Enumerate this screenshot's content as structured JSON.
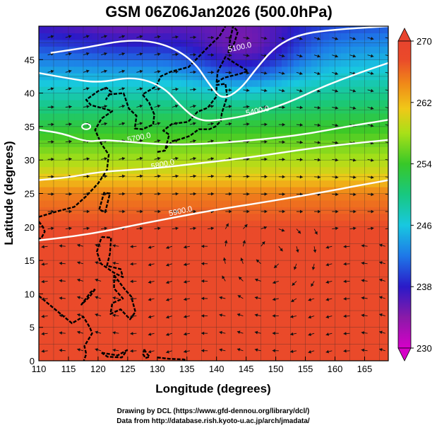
{
  "figure": {
    "title": "GSM 06Z06Jan2026 (500.0hPa)",
    "xlabel": "Longitude (degrees)",
    "ylabel": "Latitude  (degrees)",
    "credit_line1": "Drawing by DCL (https://www.gfd-dennou.org/library/dcl/)",
    "credit_line2": "Data from http://database.rish.kyoto-u.ac.jp/arch/jmadata/"
  },
  "chart_data": {
    "type": "heatmap",
    "x_range": [
      110,
      169
    ],
    "y_range": [
      0,
      50
    ],
    "x_ticks": [
      110,
      115,
      120,
      125,
      130,
      135,
      140,
      145,
      150,
      155,
      160,
      165
    ],
    "y_ticks": [
      0,
      5,
      10,
      15,
      20,
      25,
      30,
      35,
      40,
      45
    ],
    "colorbar": {
      "range": [
        230,
        270
      ],
      "tick_values": [
        230,
        238,
        246,
        254,
        262,
        270
      ],
      "tick_labels": [
        "230",
        "238",
        "246",
        "254",
        "262",
        "270"
      ]
    },
    "height_contours": [
      {
        "value": 5100,
        "label": "5100.0",
        "label_at": [
          144,
          46.5
        ],
        "path": [
          [
            112,
            46
          ],
          [
            118,
            46.8
          ],
          [
            125,
            48
          ],
          [
            131,
            47.5
          ],
          [
            136,
            45
          ],
          [
            139,
            41
          ],
          [
            141,
            39
          ],
          [
            144,
            40.5
          ],
          [
            147,
            44
          ],
          [
            150,
            47
          ],
          [
            154,
            48.8
          ],
          [
            160,
            49.5
          ],
          [
            169,
            50
          ]
        ]
      },
      {
        "value": 5400,
        "label": "5400.0",
        "label_at": [
          147,
          37
        ],
        "path": [
          [
            110,
            43
          ],
          [
            115,
            42.2
          ],
          [
            120,
            41.5
          ],
          [
            126,
            42.5
          ],
          [
            131,
            41
          ],
          [
            134,
            38
          ],
          [
            137,
            35.8
          ],
          [
            141,
            36
          ],
          [
            146,
            36.8
          ],
          [
            152,
            38.5
          ],
          [
            158,
            41
          ],
          [
            164,
            43
          ],
          [
            169,
            44.5
          ]
        ]
      },
      {
        "value": 5700,
        "label": "5700.0",
        "label_at": [
          127,
          33
        ],
        "path": [
          [
            110,
            34.5
          ],
          [
            114,
            34
          ],
          [
            118,
            32.7
          ],
          [
            121,
            33
          ],
          [
            124,
            32.8
          ],
          [
            128,
            32.5
          ],
          [
            132,
            32.3
          ],
          [
            138,
            32.4
          ],
          [
            144,
            32.8
          ],
          [
            150,
            33.3
          ],
          [
            156,
            34
          ],
          [
            162,
            35
          ],
          [
            169,
            36
          ]
        ]
      },
      {
        "value": 5800,
        "label": "5800.0",
        "label_at": [
          131,
          29
        ],
        "path": [
          [
            110,
            27
          ],
          [
            115,
            27.4
          ],
          [
            120,
            28.2
          ],
          [
            125,
            28.5
          ],
          [
            130,
            28.8
          ],
          [
            136,
            29.4
          ],
          [
            142,
            30
          ],
          [
            148,
            30.7
          ],
          [
            154,
            31.5
          ],
          [
            160,
            32.2
          ],
          [
            169,
            33
          ]
        ]
      },
      {
        "value": 5900,
        "label": "5900.0",
        "label_at": [
          134,
          22
        ],
        "path": [
          [
            110,
            18
          ],
          [
            116,
            18.6
          ],
          [
            122,
            19.5
          ],
          [
            128,
            20.6
          ],
          [
            134,
            21.6
          ],
          [
            140,
            22.6
          ],
          [
            146,
            23.4
          ],
          [
            152,
            24.3
          ],
          [
            158,
            25.2
          ],
          [
            164,
            26.2
          ],
          [
            169,
            27
          ]
        ]
      }
    ]
  }
}
